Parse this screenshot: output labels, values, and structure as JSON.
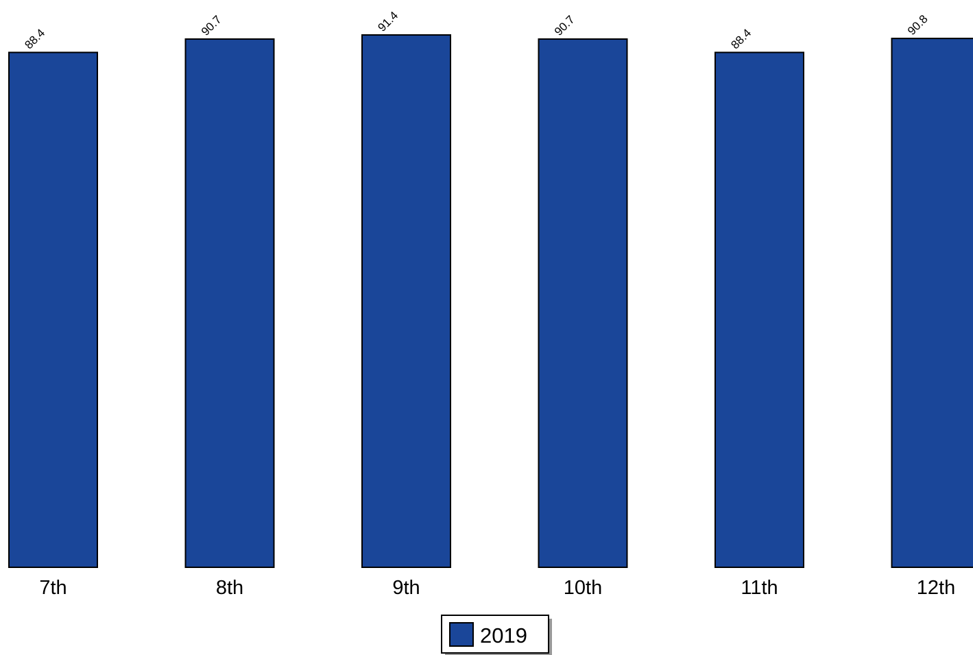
{
  "chart_data": {
    "type": "bar",
    "categories": [
      "7th",
      "8th",
      "9th",
      "10th",
      "11th",
      "12th"
    ],
    "series": [
      {
        "name": "2019",
        "values": [
          88.4,
          90.7,
          91.4,
          90.7,
          88.4,
          90.8
        ],
        "color": "#1a4699"
      }
    ],
    "data_labels": [
      "88.4",
      "90.7",
      "91.4",
      "90.7",
      "88.4",
      "90.8"
    ],
    "title": "",
    "xlabel": "",
    "ylabel": "",
    "ylim": [
      0,
      91.4
    ],
    "grid": false,
    "legend_position": "bottom-center",
    "colors": {
      "bar": "#1a4699",
      "outline": "#000000",
      "legend_shadow": "#999999"
    }
  }
}
